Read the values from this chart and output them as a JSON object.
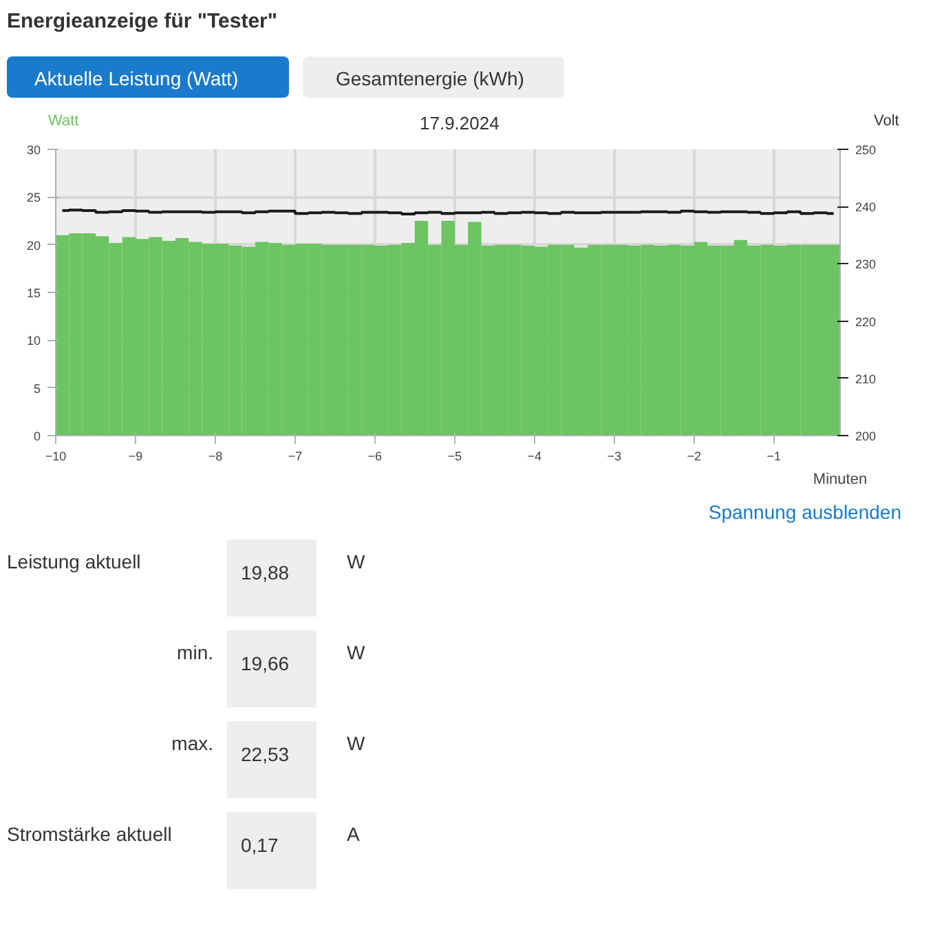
{
  "chart_data": {
    "type": "bar",
    "title": "Energieanzeige für \"Tester\"",
    "subtitle": "17.9.2024",
    "xlabel": "Minuten",
    "ylabel": "Watt",
    "y2label": "Volt",
    "x": [
      -9.917,
      -9.75,
      -9.583,
      -9.417,
      -9.25,
      -9.083,
      -8.917,
      -8.75,
      -8.583,
      -8.417,
      -8.25,
      -8.083,
      -7.917,
      -7.75,
      -7.583,
      -7.417,
      -7.25,
      -7.083,
      -6.917,
      -6.75,
      -6.583,
      -6.417,
      -6.25,
      -6.083,
      -5.917,
      -5.75,
      -5.583,
      -5.417,
      -5.25,
      -5.083,
      -4.917,
      -4.75,
      -4.583,
      -4.417,
      -4.25,
      -4.083,
      -3.917,
      -3.75,
      -3.583,
      -3.417,
      -3.25,
      -3.083,
      -2.917,
      -2.75,
      -2.583,
      -2.417,
      -2.25,
      -2.083,
      -1.917,
      -1.75,
      -1.583,
      -1.417,
      -1.25,
      -1.083,
      -0.917,
      -0.75,
      -0.583,
      -0.417,
      -0.25
    ],
    "series": [
      {
        "color": "#6cc462",
        "values": [
          21.0,
          21.2,
          21.2,
          20.9,
          20.2,
          20.8,
          20.6,
          20.8,
          20.4,
          20.7,
          20.3,
          20.1,
          20.1,
          19.9,
          19.8,
          20.3,
          20.2,
          20.0,
          20.1,
          20.1,
          20.0,
          20.0,
          20.0,
          20.0,
          19.9,
          20.0,
          20.2,
          22.5,
          20.0,
          22.5,
          20.0,
          22.4,
          19.9,
          20.0,
          20.0,
          19.9,
          19.8,
          20.0,
          20.0,
          19.7,
          20.0,
          20.0,
          20.0,
          19.9,
          20.0,
          19.9,
          20.0,
          19.9,
          20.3,
          19.9,
          19.9,
          20.5,
          19.9,
          20.0,
          19.9,
          20.0,
          20.0,
          20.0,
          20.0
        ]
      },
      {
        "type": "step",
        "axis": "y2",
        "color": "#1a1a1a",
        "values": [
          239.3,
          239.4,
          239.3,
          239.0,
          239.1,
          239.3,
          239.2,
          239.0,
          239.1,
          239.1,
          239.1,
          239.0,
          239.1,
          239.1,
          238.9,
          239.1,
          239.2,
          239.2,
          238.8,
          238.9,
          239.0,
          238.9,
          238.8,
          239.0,
          239.0,
          238.9,
          238.7,
          238.9,
          239.0,
          238.8,
          238.9,
          238.9,
          239.0,
          238.8,
          238.9,
          239.0,
          238.9,
          238.8,
          239.0,
          238.9,
          238.9,
          239.0,
          239.0,
          239.0,
          239.1,
          239.1,
          239.0,
          239.2,
          239.1,
          239.0,
          239.1,
          239.1,
          239.0,
          238.8,
          238.9,
          239.1,
          238.8,
          238.9,
          238.8
        ]
      }
    ],
    "xlim": [
      -10,
      -0.17
    ],
    "xticks": [
      -10,
      -9,
      -8,
      -7,
      -6,
      -5,
      -4,
      -3,
      -2,
      -1
    ],
    "ylim": [
      0,
      30
    ],
    "yticks": [
      0,
      5,
      10,
      15,
      20,
      25,
      30
    ],
    "y2lim": [
      200,
      250
    ],
    "y2ticks": [
      200,
      210,
      220,
      230,
      240,
      250
    ],
    "grid": true,
    "annotations": [
      "Aktuelle Leistung (Watt)",
      "Gesamtenergie (kWh)",
      "Spannung ausblenden",
      "Leistung aktuell",
      "19,88",
      "W",
      "min.",
      "19,66",
      "W",
      "max.",
      "22,53",
      "W",
      "Stromstärke aktuell",
      "0,17",
      "A"
    ]
  }
}
